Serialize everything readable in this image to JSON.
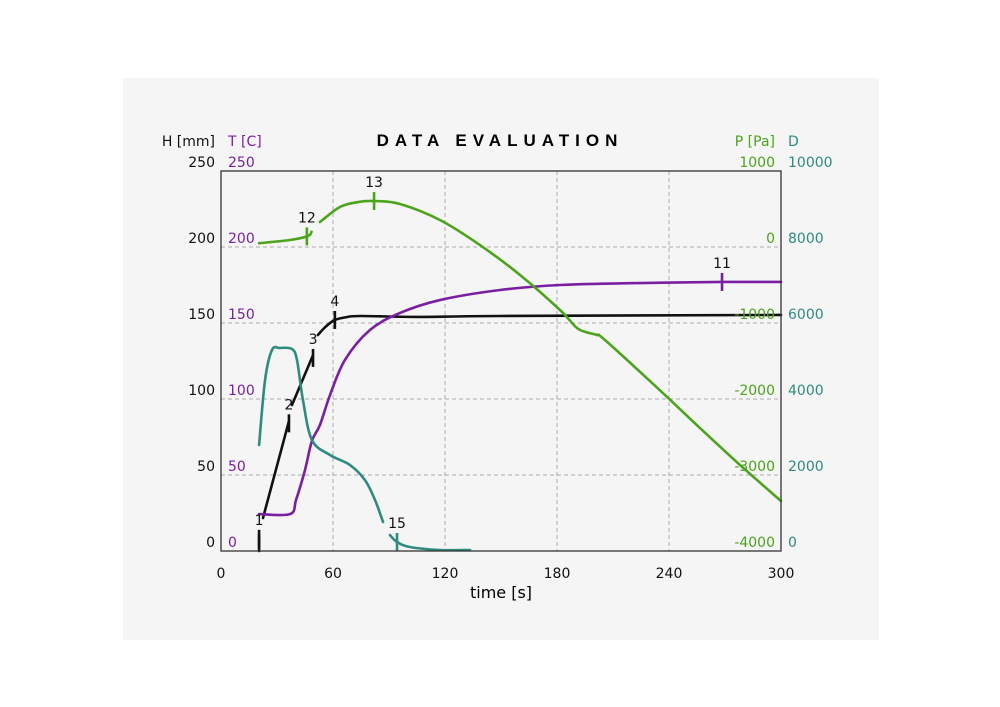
{
  "chart_data": {
    "type": "line",
    "title": "DATA EVALUATION",
    "xlabel": "time [s]",
    "xlim": [
      0,
      300
    ],
    "xticks": [
      "0",
      "60",
      "120",
      "180",
      "240",
      "300"
    ],
    "grid": true,
    "axes": {
      "H": {
        "label": "H [mm]",
        "side": "left-outer",
        "range": [
          0,
          250
        ],
        "ticks": [
          "0",
          "50",
          "100",
          "150",
          "200",
          "250"
        ],
        "color": "#111111"
      },
      "T": {
        "label": "T [C]",
        "side": "left-inner",
        "range": [
          0,
          250
        ],
        "ticks": [
          "0",
          "50",
          "100",
          "150",
          "200",
          "250"
        ],
        "color": "#7a1fa2"
      },
      "P": {
        "label": "P [Pa]",
        "side": "right-inner",
        "range": [
          -4000,
          1000
        ],
        "ticks": [
          "-4000",
          "-3000",
          "-2000",
          "-1000",
          "0",
          "1000"
        ],
        "color": "#4ca31c"
      },
      "D": {
        "label": "D",
        "side": "right-outer",
        "range": [
          0,
          10000
        ],
        "ticks": [
          "0",
          "2000",
          "4000",
          "6000",
          "8000",
          "10000"
        ],
        "color": "#2e8b80"
      }
    },
    "series": [
      {
        "name": "H",
        "axis": "H",
        "color": "#111111",
        "segments": [
          [
            [
              20.4,
              0
            ],
            [
              20.4,
              10.5
            ]
          ],
          [
            [
              22.5,
              21.7
            ],
            [
              36.4,
              85.5
            ]
          ],
          [
            [
              38.0,
              96.0
            ],
            [
              49.3,
              128.9
            ]
          ],
          [
            [
              51.9,
              142.1
            ],
            [
              56,
              147.5
            ],
            [
              61.0,
              152.0
            ],
            [
              67,
              153.8
            ],
            [
              74.5,
              154.6
            ],
            [
              106.6,
              154.0
            ],
            [
              149.5,
              154.6
            ],
            [
              300,
              155.3
            ]
          ]
        ]
      },
      {
        "name": "T",
        "axis": "T",
        "color": "#7a1fa2",
        "segments": [
          [
            [
              20.4,
              24.3
            ],
            [
              37.0,
              24.3
            ],
            [
              40.2,
              33.6
            ],
            [
              45.0,
              53.3
            ],
            [
              48.7,
              72.4
            ],
            [
              53.0,
              82.9
            ],
            [
              58.4,
              102.6
            ],
            [
              66.4,
              125.7
            ],
            [
              79.8,
              145.4
            ],
            [
              95.9,
              156.6
            ],
            [
              117.3,
              165.1
            ],
            [
              149.5,
              171.7
            ],
            [
              181.6,
              175.0
            ],
            [
              224.5,
              176.3
            ],
            [
              268.4,
              177.0
            ],
            [
              300,
              177.0
            ]
          ]
        ]
      },
      {
        "name": "P",
        "axis": "P",
        "color": "#4ca31c",
        "segments": [
          [
            [
              20.4,
              50
            ],
            [
              37.0,
              92
            ],
            [
              46.6,
              145
            ],
            [
              48.5,
              200
            ]
          ],
          [
            [
              53.0,
              329
            ],
            [
              63.7,
              526
            ],
            [
              73,
              590
            ],
            [
              82.0,
              605
            ],
            [
              95.9,
              566
            ],
            [
              117.3,
              355
            ],
            [
              138.7,
              26
            ],
            [
              160.2,
              -368
            ],
            [
              181.6,
              -829
            ],
            [
              190.7,
              -1066
            ],
            [
              197,
              -1130
            ],
            [
              201.4,
              -1158
            ],
            [
              205.7,
              -1224
            ],
            [
              235,
              -1882
            ],
            [
              256.6,
              -2382
            ],
            [
              278,
              -2868
            ],
            [
              300,
              -3342
            ]
          ]
        ]
      },
      {
        "name": "D",
        "axis": "D",
        "color": "#2e8b80",
        "segments": [
          [
            [
              20.4,
              2789
            ],
            [
              23.6,
              4500
            ],
            [
              27.3,
              5289
            ],
            [
              31.6,
              5342
            ],
            [
              38.0,
              5316
            ],
            [
              40.7,
              5026
            ],
            [
              43.9,
              3974
            ],
            [
              48.7,
              2921
            ],
            [
              58.4,
              2526
            ],
            [
              69.1,
              2263
            ],
            [
              77.1,
              1868
            ],
            [
              82.5,
              1342
            ],
            [
              86.8,
              763
            ]
          ],
          [
            [
              90.5,
              421
            ],
            [
              94.3,
              237
            ],
            [
              101.2,
              105
            ],
            [
              117.3,
              26
            ],
            [
              133.4,
              26
            ]
          ]
        ]
      }
    ],
    "markers": [
      {
        "label": "1",
        "series": "H",
        "x": 20.4,
        "y": 8
      },
      {
        "label": "2",
        "series": "H",
        "x": 36.4,
        "y": 84
      },
      {
        "label": "3",
        "series": "H",
        "x": 49.3,
        "y": 127
      },
      {
        "label": "4",
        "series": "H",
        "x": 61.0,
        "y": 152
      },
      {
        "label": "11",
        "series": "T",
        "x": 268.4,
        "y": 177
      },
      {
        "label": "12",
        "series": "P",
        "x": 46.0,
        "y": 140
      },
      {
        "label": "13",
        "series": "P",
        "x": 82.0,
        "y": 605
      },
      {
        "label": "15",
        "series": "D",
        "x": 94.3,
        "y": 237
      }
    ]
  }
}
